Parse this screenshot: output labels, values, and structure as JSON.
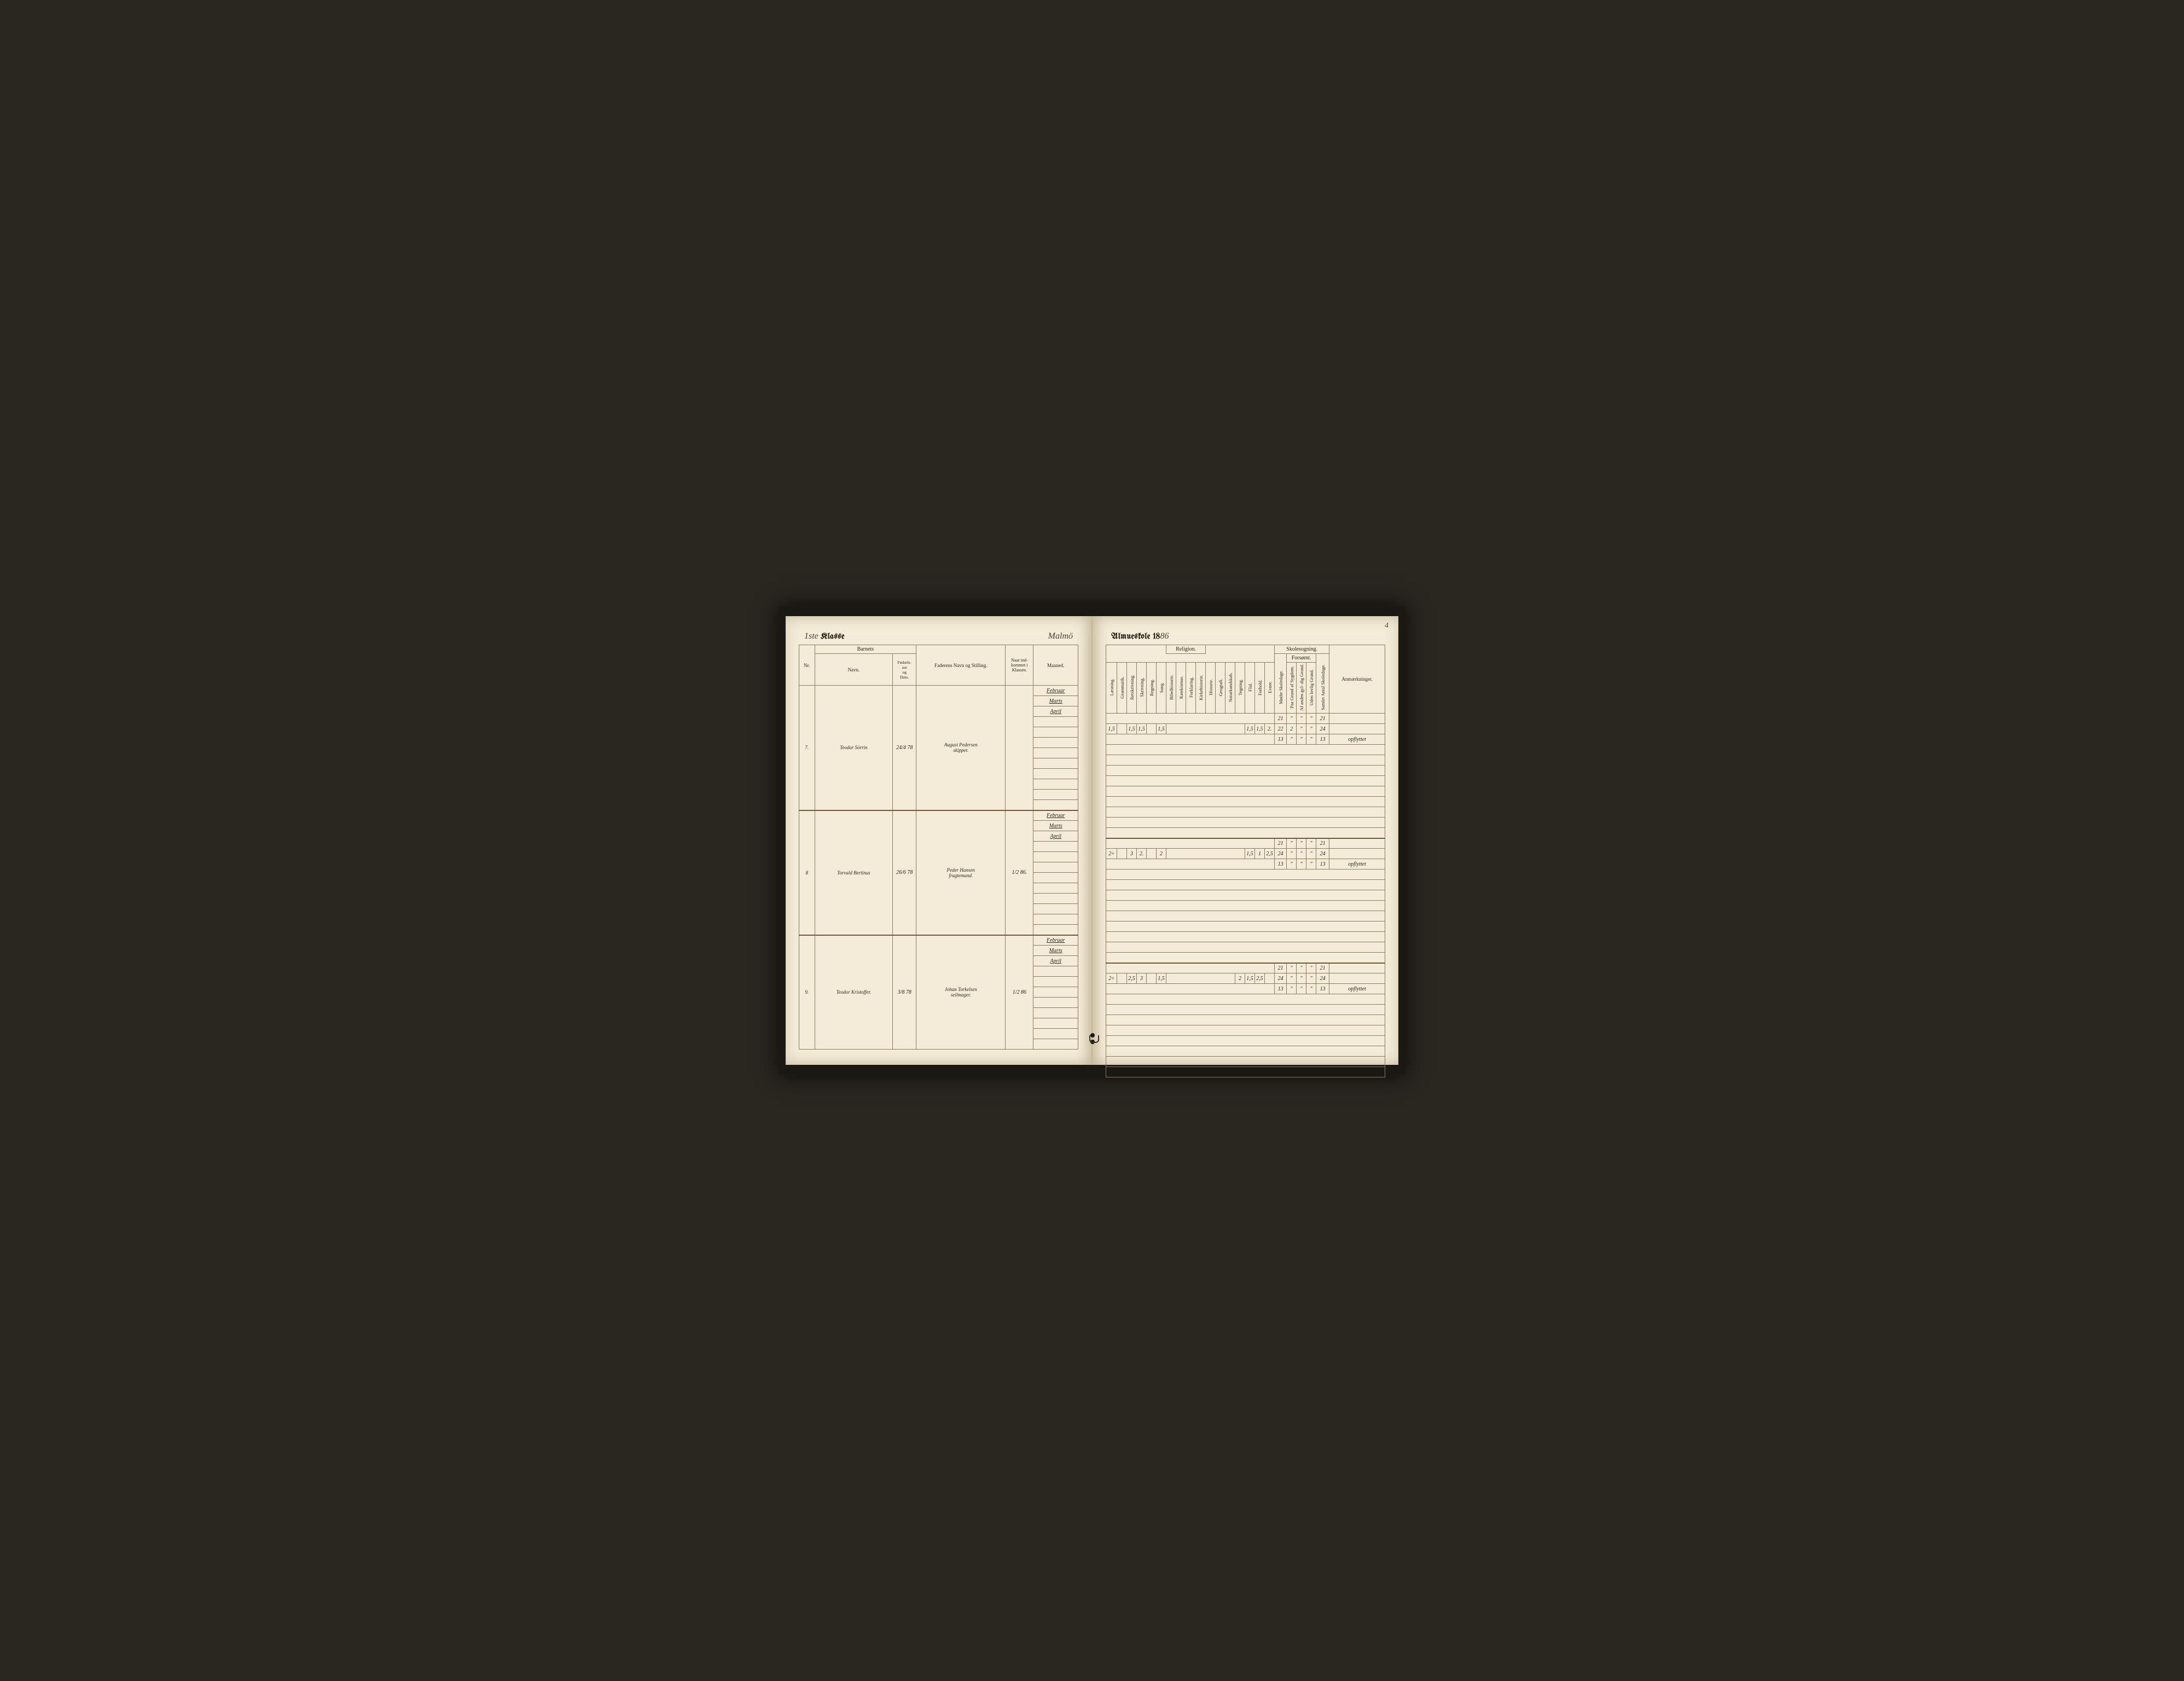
{
  "pageNumber": "4",
  "left": {
    "klasseScript": "1ste",
    "klassePrinted": "Klasse",
    "schoolScript": "Malmö",
    "headers": {
      "nr": "Nr.",
      "barnets": "Barnets",
      "navn": "Navn.",
      "fodsels": "Fødsels-\naar\nog\nDato.",
      "faderens": "Faderens Navn og Stilling.",
      "naar": "Naar ind-\nkommet i\nKlassen.",
      "maaned": "Maaned."
    },
    "students": [
      {
        "nr": "7.",
        "navn": "Teodor Sörrin",
        "fodsels": "24/4 78",
        "faderens": "August Pedersen\nskipper.",
        "naar": "",
        "months": [
          "Februar",
          "Marts",
          "April",
          "",
          "",
          "",
          "",
          "",
          "",
          "",
          "",
          ""
        ]
      },
      {
        "nr": "8",
        "navn": "Torvald Bertinus",
        "fodsels": "26/6 78",
        "faderens": "Peder Hansen\nfragtemand.",
        "naar": "1/2 86.",
        "months": [
          "Februar",
          "Marts",
          "April",
          "",
          "",
          "",
          "",
          "",
          "",
          "",
          "",
          ""
        ]
      },
      {
        "nr": "9.",
        "navn": "Teodor Kristoffer.",
        "fodsels": "3/8 78",
        "faderens": "Johan Torkelsen\nseilmager.",
        "naar": "1/2 86",
        "months": [
          "Februar",
          "Marts",
          "April",
          "",
          "",
          "",
          "",
          "",
          "",
          "",
          ""
        ]
      }
    ]
  },
  "right": {
    "almuePrinted": "Almueskole 18",
    "almueScript": "86",
    "headers": {
      "religion": "Religion.",
      "skolesogning": "Skolesogning.",
      "forsomt": "Forsømt.",
      "anm": "Anmærkninger.",
      "cols": [
        "Læsning.",
        "Grammatik.",
        "Retskrivning.",
        "Skrivning.",
        "Regning.",
        "Sang.",
        "Bibelhistorie.",
        "Katekismus.",
        "Forklaring.",
        "Kirkehistorie.",
        "Historie.",
        "Geografi.",
        "Naturkundskab.",
        "Tegning.",
        "Flid.",
        "Forhold.",
        "Evner.",
        "Mødte Skoledage.",
        "Paa Grund af Sygdom.",
        "Af anden gyl-\ndig Grund.",
        "Uden lovlig Grund.",
        "Samlet Antal Skoledage."
      ]
    },
    "rows": [
      [
        {
          "c": 17,
          "v": ""
        },
        {
          "v": "21"
        },
        {
          "v": "\""
        },
        {
          "v": "\""
        },
        {
          "v": "\""
        },
        {
          "v": "21"
        },
        {
          "v": ""
        }
      ],
      [
        {
          "v": "1,5"
        },
        {
          "v": ""
        },
        {
          "v": "1,5"
        },
        {
          "v": "1,5"
        },
        {
          "v": ""
        },
        {
          "v": "1,5"
        },
        {
          "c": 8,
          "v": ""
        },
        {
          "v": "1,5"
        },
        {
          "v": "1,5"
        },
        {
          "v": "2."
        },
        {
          "v": "22"
        },
        {
          "v": "2"
        },
        {
          "v": "\""
        },
        {
          "v": "\""
        },
        {
          "v": "24"
        },
        {
          "v": ""
        }
      ],
      [
        {
          "c": 17,
          "v": ""
        },
        {
          "v": "13"
        },
        {
          "v": "\""
        },
        {
          "v": "\""
        },
        {
          "v": "\""
        },
        {
          "v": "13"
        },
        {
          "v": "opflyttet"
        }
      ],
      [
        {
          "c": 23,
          "v": ""
        }
      ],
      [
        {
          "c": 23,
          "v": ""
        }
      ],
      [
        {
          "c": 23,
          "v": ""
        }
      ],
      [
        {
          "c": 23,
          "v": ""
        }
      ],
      [
        {
          "c": 23,
          "v": ""
        }
      ],
      [
        {
          "c": 23,
          "v": ""
        }
      ],
      [
        {
          "c": 23,
          "v": ""
        }
      ],
      [
        {
          "c": 23,
          "v": ""
        }
      ],
      [
        {
          "c": 23,
          "v": ""
        }
      ],
      [
        {
          "c": 17,
          "v": ""
        },
        {
          "v": "21"
        },
        {
          "v": "\""
        },
        {
          "v": "\""
        },
        {
          "v": "\""
        },
        {
          "v": "21"
        },
        {
          "v": ""
        }
      ],
      [
        {
          "v": "2÷"
        },
        {
          "v": ""
        },
        {
          "v": "3"
        },
        {
          "v": "2."
        },
        {
          "v": ""
        },
        {
          "v": "2"
        },
        {
          "c": 8,
          "v": ""
        },
        {
          "v": "1,5"
        },
        {
          "v": "1"
        },
        {
          "v": "2,5"
        },
        {
          "v": "24"
        },
        {
          "v": "\""
        },
        {
          "v": "\""
        },
        {
          "v": "\""
        },
        {
          "v": "24"
        },
        {
          "v": ""
        }
      ],
      [
        {
          "c": 17,
          "v": ""
        },
        {
          "v": "13"
        },
        {
          "v": "\""
        },
        {
          "v": "\""
        },
        {
          "v": "\""
        },
        {
          "v": "13"
        },
        {
          "v": "opflyttet"
        }
      ],
      [
        {
          "c": 23,
          "v": ""
        }
      ],
      [
        {
          "c": 23,
          "v": ""
        }
      ],
      [
        {
          "c": 23,
          "v": ""
        }
      ],
      [
        {
          "c": 23,
          "v": ""
        }
      ],
      [
        {
          "c": 23,
          "v": ""
        }
      ],
      [
        {
          "c": 23,
          "v": ""
        }
      ],
      [
        {
          "c": 23,
          "v": ""
        }
      ],
      [
        {
          "c": 23,
          "v": ""
        }
      ],
      [
        {
          "c": 23,
          "v": ""
        }
      ],
      [
        {
          "c": 17,
          "v": ""
        },
        {
          "v": "21"
        },
        {
          "v": "\""
        },
        {
          "v": "\""
        },
        {
          "v": "\""
        },
        {
          "v": "21"
        },
        {
          "v": ""
        }
      ],
      [
        {
          "v": "2÷"
        },
        {
          "v": ""
        },
        {
          "v": "2,5"
        },
        {
          "v": "3"
        },
        {
          "v": ""
        },
        {
          "v": "1,5"
        },
        {
          "c": 7,
          "v": ""
        },
        {
          "v": "2"
        },
        {
          "v": "1,5"
        },
        {
          "v": "2,5"
        },
        {
          "v": ""
        },
        {
          "v": "24"
        },
        {
          "v": "\""
        },
        {
          "v": "\""
        },
        {
          "v": "\""
        },
        {
          "v": "24"
        },
        {
          "v": ""
        }
      ],
      [
        {
          "c": 17,
          "v": ""
        },
        {
          "v": "13"
        },
        {
          "v": "\""
        },
        {
          "v": "\""
        },
        {
          "v": "\""
        },
        {
          "v": "13"
        },
        {
          "v": "opflyttet"
        }
      ],
      [
        {
          "c": 23,
          "v": ""
        }
      ],
      [
        {
          "c": 23,
          "v": ""
        }
      ],
      [
        {
          "c": 23,
          "v": ""
        }
      ],
      [
        {
          "c": 23,
          "v": ""
        }
      ],
      [
        {
          "c": 23,
          "v": ""
        }
      ],
      [
        {
          "c": 23,
          "v": ""
        }
      ],
      [
        {
          "c": 23,
          "v": ""
        }
      ],
      [
        {
          "c": 23,
          "v": ""
        }
      ]
    ]
  },
  "colors": {
    "pageBg": "#f4ecd8",
    "ink": "#2a2418",
    "rule": "#8a7a5a",
    "heavyRule": "#6a5a3a",
    "coverBg": "#2a2620"
  }
}
